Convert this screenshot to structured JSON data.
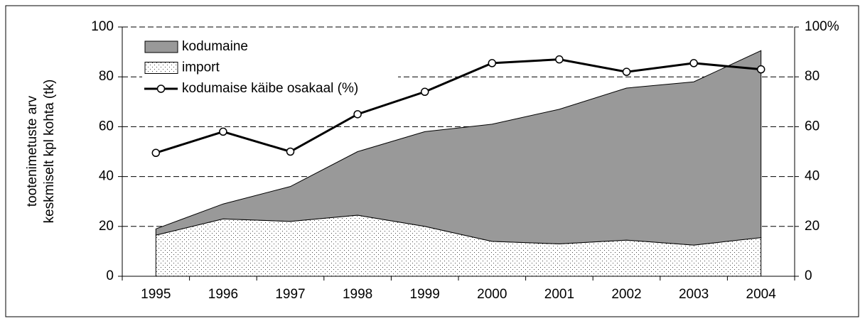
{
  "chart_data": {
    "type": "stacked_area",
    "ylabel": [
      "tootenimetuste arv",
      "keskmiselt kpl kohta (tk)"
    ],
    "categories": [
      "1995",
      "1996",
      "1997",
      "1998",
      "1999",
      "2000",
      "2001",
      "2002",
      "2003",
      "2004"
    ],
    "series": [
      {
        "name": "import",
        "color": "#ffffff",
        "pattern": "dots",
        "values": [
          16.5,
          23,
          22,
          24.5,
          20,
          14,
          13,
          14.5,
          12.5,
          15.5
        ]
      },
      {
        "name": "kodumaine",
        "color": "#999999",
        "values": [
          2.5,
          6,
          14,
          25.5,
          38,
          47,
          54,
          61,
          65.5,
          75
        ]
      },
      {
        "name": "kodumaise käibe osakaal (%)",
        "color": "#000000",
        "type": "line",
        "axis": "y2",
        "values": [
          49.5,
          58,
          50,
          65,
          74,
          85.5,
          87,
          82,
          85.5,
          83
        ]
      }
    ],
    "legend_order": [
      1,
      0,
      2
    ],
    "ylim": [
      0,
      100
    ],
    "yticks": [
      0,
      20,
      40,
      60,
      80,
      100
    ],
    "y2lim": [
      0,
      100
    ],
    "y2ticks": [
      0,
      20,
      40,
      60,
      80,
      {
        "value": 100,
        "label": "100%"
      }
    ],
    "grid": true,
    "legend": "upper left"
  }
}
